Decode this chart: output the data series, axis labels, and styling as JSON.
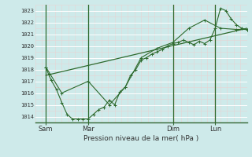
{
  "xlabel": "Pression niveau de la mer( hPa )",
  "bg_color": "#ceeaea",
  "line_color": "#2d6a2d",
  "ylim": [
    1013.5,
    1023.5
  ],
  "xlim": [
    0,
    160
  ],
  "yticks": [
    1014,
    1015,
    1016,
    1017,
    1018,
    1019,
    1020,
    1021,
    1022,
    1023
  ],
  "xtick_labels": [
    "Sam",
    "Mar",
    "Dim",
    "Lun"
  ],
  "xtick_pos": [
    8,
    40,
    104,
    136
  ],
  "vline_pos": [
    8,
    40,
    104,
    136
  ],
  "line1_x": [
    8,
    10,
    12,
    16,
    20,
    24,
    28,
    32,
    36,
    40,
    44,
    48,
    52,
    56,
    60,
    64,
    68,
    72,
    76,
    80,
    84,
    88,
    92,
    96,
    100,
    104,
    108,
    112,
    116,
    120,
    124,
    128,
    132,
    136,
    140,
    144,
    148,
    152,
    156,
    160
  ],
  "line1_y": [
    1018.2,
    1017.6,
    1017.1,
    1016.3,
    1015.2,
    1014.2,
    1013.8,
    1013.8,
    1013.8,
    1013.8,
    1014.2,
    1014.6,
    1014.8,
    1015.4,
    1015.0,
    1016.1,
    1016.5,
    1017.5,
    1018.0,
    1018.8,
    1019.0,
    1019.3,
    1019.5,
    1019.7,
    1020.0,
    1020.2,
    1020.3,
    1020.5,
    1020.3,
    1020.1,
    1020.4,
    1020.2,
    1020.5,
    1021.5,
    1023.2,
    1023.0,
    1022.3,
    1021.8,
    1021.5,
    1021.4
  ],
  "line2_x": [
    8,
    20,
    40,
    56,
    68,
    80,
    92,
    104,
    116,
    128,
    140,
    152,
    160
  ],
  "line2_y": [
    1018.2,
    1016.0,
    1017.0,
    1015.0,
    1016.5,
    1019.0,
    1019.8,
    1020.3,
    1021.5,
    1022.2,
    1021.5,
    1021.4,
    1021.4
  ],
  "trend_x": [
    8,
    160
  ],
  "trend_y": [
    1017.5,
    1021.5
  ],
  "grid_minor_color": "#e8d4d4",
  "grid_major_color": "#ffffff"
}
